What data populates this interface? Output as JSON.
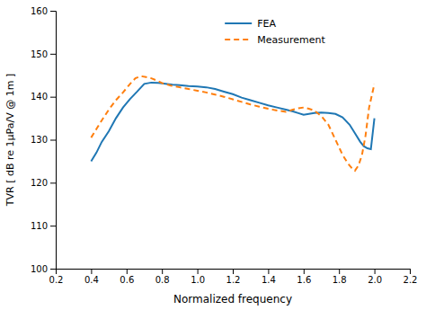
{
  "chart_data": {
    "type": "line",
    "xlabel": "Normalized frequency",
    "ylabel": "TVR [ dB re 1μPa/V @ 1m ]",
    "xlim": [
      0.2,
      2.2
    ],
    "ylim": [
      100,
      160
    ],
    "xticks": [
      0.2,
      0.4,
      0.6,
      0.8,
      {
        "value": 1.0,
        "label": "1.0"
      },
      1.2,
      1.4,
      1.6,
      1.8,
      {
        "value": 2.0,
        "label": "2.0"
      },
      2.2
    ],
    "yticks": [
      100,
      110,
      120,
      130,
      140,
      150,
      160
    ],
    "grid": false,
    "legend": "top",
    "series": [
      {
        "name": "FEA",
        "line_style": "solid",
        "x": [
          0.4,
          0.43,
          0.46,
          0.5,
          0.54,
          0.58,
          0.62,
          0.66,
          0.7,
          0.74,
          0.78,
          0.82,
          0.86,
          0.9,
          0.95,
          1.0,
          1.05,
          1.1,
          1.15,
          1.2,
          1.25,
          1.3,
          1.35,
          1.4,
          1.45,
          1.5,
          1.54,
          1.57,
          1.6,
          1.63,
          1.66,
          1.7,
          1.74,
          1.78,
          1.82,
          1.86,
          1.89,
          1.92,
          1.94,
          1.96,
          1.98,
          2.0
        ],
        "values": [
          125.0,
          127.0,
          129.5,
          132.0,
          135.0,
          137.5,
          139.5,
          141.2,
          143.0,
          143.3,
          143.2,
          143.0,
          142.8,
          142.7,
          142.5,
          142.4,
          142.2,
          141.8,
          141.2,
          140.6,
          139.8,
          139.2,
          138.6,
          138.0,
          137.5,
          137.0,
          136.6,
          136.2,
          135.8,
          136.0,
          136.2,
          136.3,
          136.2,
          136.0,
          135.2,
          133.5,
          131.5,
          129.5,
          128.5,
          128.0,
          127.8,
          135.0
        ]
      },
      {
        "name": "Measurement",
        "line_style": "dashed",
        "x": [
          0.4,
          0.43,
          0.46,
          0.5,
          0.54,
          0.58,
          0.62,
          0.65,
          0.68,
          0.71,
          0.74,
          0.77,
          0.8,
          0.85,
          0.9,
          0.95,
          1.0,
          1.05,
          1.1,
          1.15,
          1.2,
          1.25,
          1.3,
          1.35,
          1.4,
          1.45,
          1.5,
          1.54,
          1.57,
          1.6,
          1.63,
          1.66,
          1.7,
          1.74,
          1.78,
          1.82,
          1.85,
          1.87,
          1.89,
          1.91,
          1.93,
          1.95,
          1.97,
          2.0
        ],
        "values": [
          130.5,
          132.5,
          134.5,
          137.0,
          139.2,
          141.0,
          143.0,
          144.3,
          144.8,
          144.6,
          144.3,
          143.8,
          143.2,
          142.6,
          142.2,
          141.8,
          141.4,
          141.0,
          140.5,
          140.0,
          139.4,
          138.8,
          138.2,
          137.7,
          137.2,
          136.8,
          136.5,
          137.0,
          137.3,
          137.5,
          137.2,
          136.8,
          135.5,
          133.5,
          130.0,
          126.5,
          124.5,
          123.5,
          122.8,
          124.0,
          126.5,
          131.0,
          137.5,
          143.0
        ]
      }
    ]
  }
}
